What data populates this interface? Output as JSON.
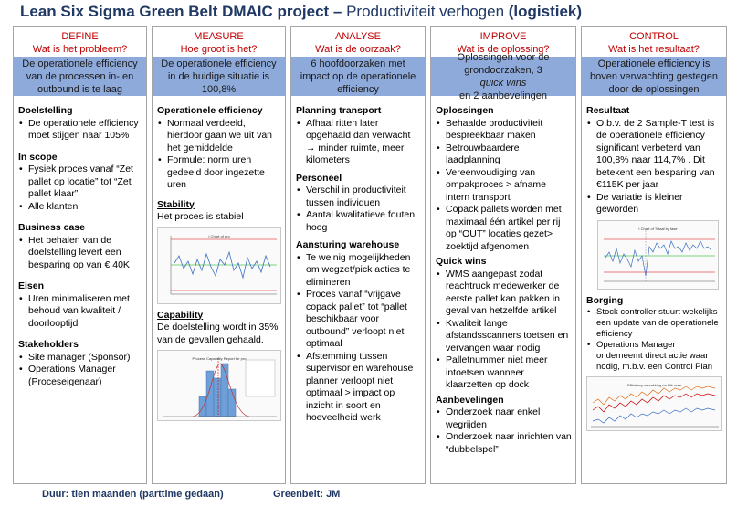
{
  "title": {
    "bold": "Lean Six Sigma Green Belt DMAIC project –",
    "normal": " Productiviteit verhogen ",
    "bold_paren": "(logistiek)"
  },
  "define": {
    "phase": "DEFINE",
    "question": "Wat is het probleem?",
    "band": "De operationele efficiency van de processen in- en outbound is te laag",
    "s1": "Doelstelling",
    "s1_items": [
      "De operationele efficiency moet stijgen naar 105%"
    ],
    "s2": "In scope",
    "s2_items": [
      "Fysiek proces vanaf “Zet pallet op locatie” tot “Zet pallet klaar”",
      "Alle klanten"
    ],
    "s3": "Business case",
    "s3_items": [
      "Het behalen van de doelstelling levert een besparing op van € 40K"
    ],
    "s4": "Eisen",
    "s4_items": [
      "Uren minimaliseren met behoud van kwaliteit / doorlooptijd"
    ],
    "s5": "Stakeholders",
    "s5_items": [
      "Site manager (Sponsor)",
      "Operations Manager (Proceseigenaar)"
    ]
  },
  "measure": {
    "phase": "MEASURE",
    "question": "Hoe groot is het?",
    "band": "De operationele efficiency in de huidige situatie is 100,8%",
    "s1": "Operationele efficiency",
    "s1_items": [
      "Normaal verdeeld, hierdoor gaan we uit van het gemiddelde",
      "Formule: norm uren gedeeld door ingezette uren"
    ],
    "s2": "Stability",
    "s2_text": "Het proces is stabiel",
    "chart1_title": "I Chart of pro",
    "s3": "Capability",
    "s3_text": "De doelstelling wordt in 35% van de gevallen gehaald.",
    "chart2_title": "Process Capability Report for pro"
  },
  "analyse": {
    "phase": "ANALYSE",
    "question": "Wat is de oorzaak?",
    "band": "6 hoofdoorzaken met impact op de operationele efficiency",
    "s1": "Planning transport",
    "s1_items": [
      "Afhaal ritten later opgehaald dan verwacht → minder ruimte, meer kilometers"
    ],
    "s2": "Personeel",
    "s2_items": [
      "Verschil in productiviteit tussen individuen",
      "Aantal kwalitatieve fouten hoog"
    ],
    "s3": "Aansturing warehouse",
    "s3_items": [
      "Te weinig mogelijkheden om wegzet/pick acties te elimineren",
      "Proces vanaf “vrijgave copack pallet” tot “pallet beschikbaar voor outbound” verloopt niet optimaal",
      "Afstemming tussen supervisor en warehouse planner verloopt niet optimaal > impact op inzicht in soort en hoeveelheid werk"
    ]
  },
  "improve": {
    "phase": "IMPROVE",
    "question": "Wat is de oplossing?",
    "band_a": "Oplossingen voor de grondoorzaken, 3 ",
    "band_b": "quick wins",
    "band_c": " en 2 aanbevelingen",
    "s1": "Oplossingen",
    "s1_items": [
      "Behaalde productiviteit bespreekbaar maken",
      "Betrouwbaardere laadplanning",
      "Vereenvoudiging van ompakproces > afname intern transport",
      "Copack pallets worden met maximaal één artikel per rij op “OUT” locaties gezet> zoektijd afgenomen"
    ],
    "s2": "Quick wins",
    "s2_items": [
      "WMS aangepast zodat reachtruck medewerker de eerste pallet kan pakken in geval van hetzelfde artikel",
      "Kwaliteit lange afstandsscanners toetsen en vervangen waar nodig",
      "Palletnummer niet meer intoetsen wanneer klaarzetten op dock"
    ],
    "s3": "Aanbevelingen",
    "s3_items": [
      "Onderzoek naar enkel wegrijden",
      "Onderzoek naar inrichten van “dubbelspel”"
    ]
  },
  "control": {
    "phase": "CONTROL",
    "question": "Wat is het resultaat?",
    "band": "Operationele efficiency is boven verwachting gestegen door de oplossingen",
    "s1": "Resultaat",
    "s1_items": [
      "O.b.v. de 2 Sample-T test is de operationele efficiency significant verbeterd van 100,8% naar 114,7% . Dit betekent een besparing van €115K per jaar",
      "De variatie is kleiner geworden"
    ],
    "chart3_title": "I Chart of Totaal by fase",
    "s2": "Borging",
    "s2_items": [
      "Stock controller stuurt wekelijks een update van de operationele efficiency",
      "Operations Manager onderneemt direct actie waar nodig, m.b.v. een Control Plan"
    ],
    "chart4_title": "Efficiency verzakking na blik uren"
  },
  "footer": {
    "duration": "Duur: tien maanden (parttime gedaan)",
    "greenbelt": "Greenbelt: JM"
  },
  "colors": {
    "title": "#1f3864",
    "phase": "#c00000",
    "band": "#8eaadb",
    "border": "#a5a5a5"
  }
}
